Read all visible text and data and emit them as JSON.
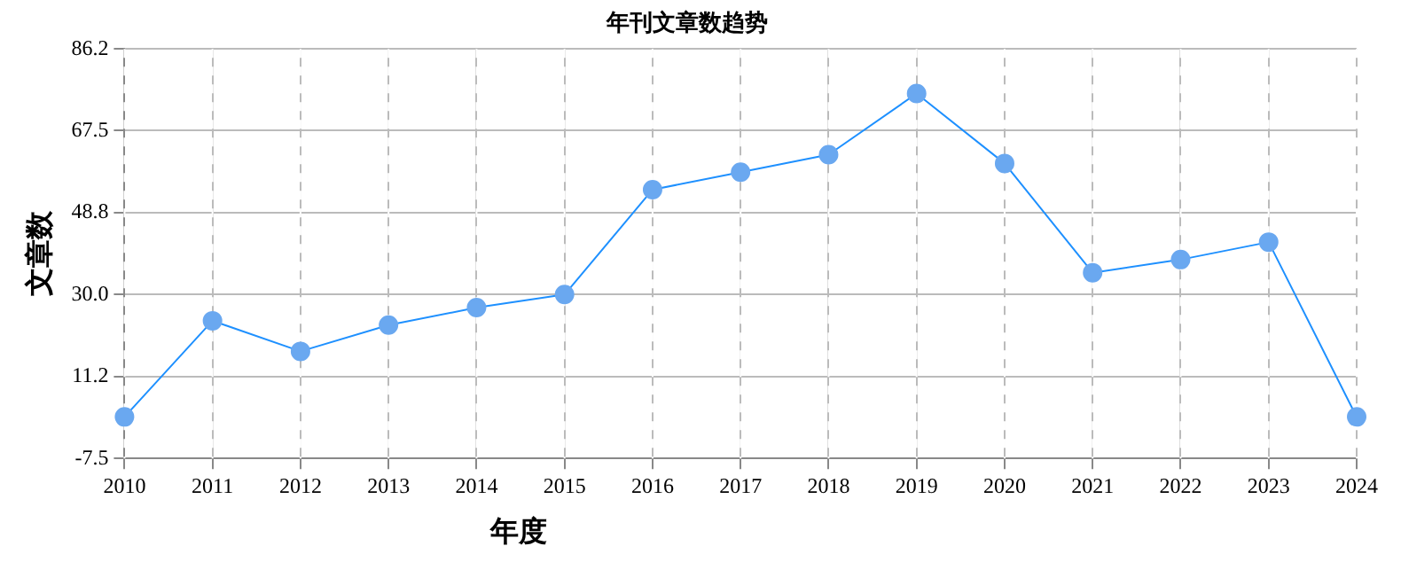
{
  "chart_data": {
    "type": "line",
    "title": "年刊文章数趋势",
    "xlabel": "年度",
    "ylabel": "文章数",
    "categories": [
      "2010",
      "2011",
      "2012",
      "2013",
      "2014",
      "2015",
      "2016",
      "2017",
      "2018",
      "2019",
      "2020",
      "2021",
      "2022",
      "2023",
      "2024"
    ],
    "series": [
      {
        "color": "#1e90ff",
        "values": [
          2,
          24,
          17,
          23,
          27,
          30,
          54,
          58,
          62,
          76,
          60,
          35,
          38,
          42,
          2
        ]
      }
    ],
    "ylim": [
      -7.5,
      86.2
    ],
    "yticks": [
      -7.5,
      11.2,
      {
        "value": 30,
        "label": "30.0"
      },
      48.8,
      67.5,
      86.2
    ],
    "grid": true,
    "legend": false,
    "marker": "circle",
    "line_style": "solid"
  }
}
